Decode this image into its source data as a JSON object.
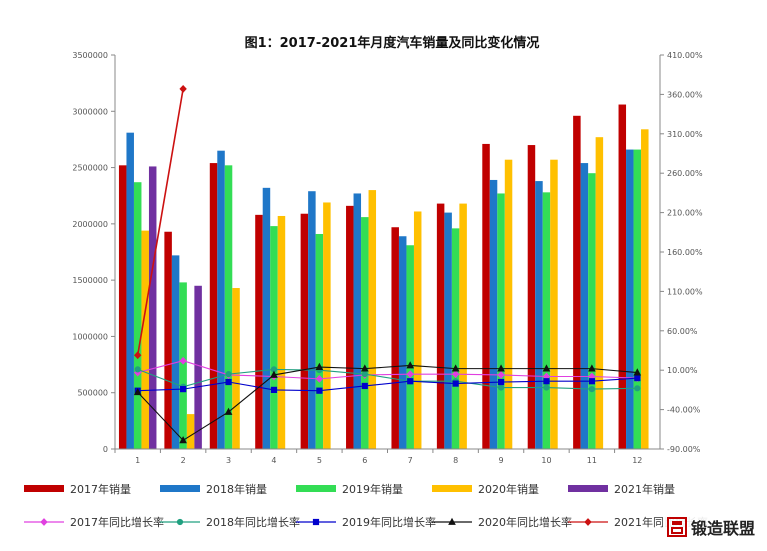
{
  "chart_data": {
    "type": "bar",
    "title": "图1：2017-2021年月度汽车销量及同比变化情况",
    "categories": [
      "1",
      "2",
      "3",
      "4",
      "5",
      "6",
      "7",
      "8",
      "9",
      "10",
      "11",
      "12"
    ],
    "y_left": {
      "ylim": [
        0,
        3500000
      ],
      "ticks": [
        "0",
        "500000",
        "1000000",
        "1500000",
        "2000000",
        "2500000",
        "3000000",
        "3500000"
      ]
    },
    "y_right": {
      "ylim": [
        -90,
        410
      ],
      "ticks": [
        "-90.00%",
        "-40.00%",
        "10.00%",
        "60.00%",
        "110.00%",
        "160.00%",
        "210.00%",
        "260.00%",
        "310.00%",
        "360.00%",
        "410.00%"
      ]
    },
    "bar_series": [
      {
        "name": "2017年销量",
        "color": "#c00000",
        "values": [
          2520000,
          1930000,
          2540000,
          2080000,
          2090000,
          2160000,
          1970000,
          2180000,
          2710000,
          2700000,
          2960000,
          3060000
        ]
      },
      {
        "name": "2018年销量",
        "color": "#1f77c8",
        "values": [
          2810000,
          1720000,
          2650000,
          2320000,
          2290000,
          2270000,
          1890000,
          2100000,
          2390000,
          2380000,
          2540000,
          2660000
        ]
      },
      {
        "name": "2019年销量",
        "color": "#33dd55",
        "values": [
          2370000,
          1480000,
          2520000,
          1980000,
          1910000,
          2060000,
          1810000,
          1960000,
          2270000,
          2280000,
          2450000,
          2660000
        ]
      },
      {
        "name": "2020年销量",
        "color": "#ffc000",
        "values": [
          1940000,
          310000,
          1430000,
          2070000,
          2190000,
          2300000,
          2110000,
          2180000,
          2570000,
          2570000,
          2770000,
          2840000
        ]
      },
      {
        "name": "2021年销量",
        "color": "#7030a0",
        "values": [
          2510000,
          1450000,
          null,
          null,
          null,
          null,
          null,
          null,
          null,
          null,
          null,
          null
        ]
      }
    ],
    "line_series": [
      {
        "name": "2017年同比增长率",
        "color": "#e040e0",
        "marker": "diamond",
        "values": [
          7,
          22,
          4,
          2,
          -1,
          4,
          5,
          5,
          4,
          2,
          2,
          0
        ]
      },
      {
        "name": "2018年同比增长率",
        "color": "#20a080",
        "marker": "circle",
        "values": [
          11,
          -11,
          5,
          11,
          10,
          5,
          -4,
          -4,
          -12,
          -12,
          -14,
          -13
        ]
      },
      {
        "name": "2019年同比增长率",
        "color": "#0000cc",
        "marker": "square",
        "values": [
          -16,
          -14,
          -5,
          -15,
          -16,
          -10,
          -4,
          -7,
          -5,
          -4,
          -4,
          0
        ]
      },
      {
        "name": "2020年同比增长率",
        "color": "#111111",
        "marker": "triangle",
        "values": [
          -18,
          -79,
          -43,
          4,
          14,
          12,
          16,
          12,
          12,
          12,
          12,
          7
        ]
      },
      {
        "name": "2021年同比增长率",
        "color": "#cc1111",
        "marker": "diamond",
        "values": [
          29,
          367,
          null,
          null,
          null,
          null,
          null,
          null,
          null,
          null,
          null,
          null
        ]
      }
    ]
  },
  "watermark": {
    "text": "锻造联盟"
  }
}
